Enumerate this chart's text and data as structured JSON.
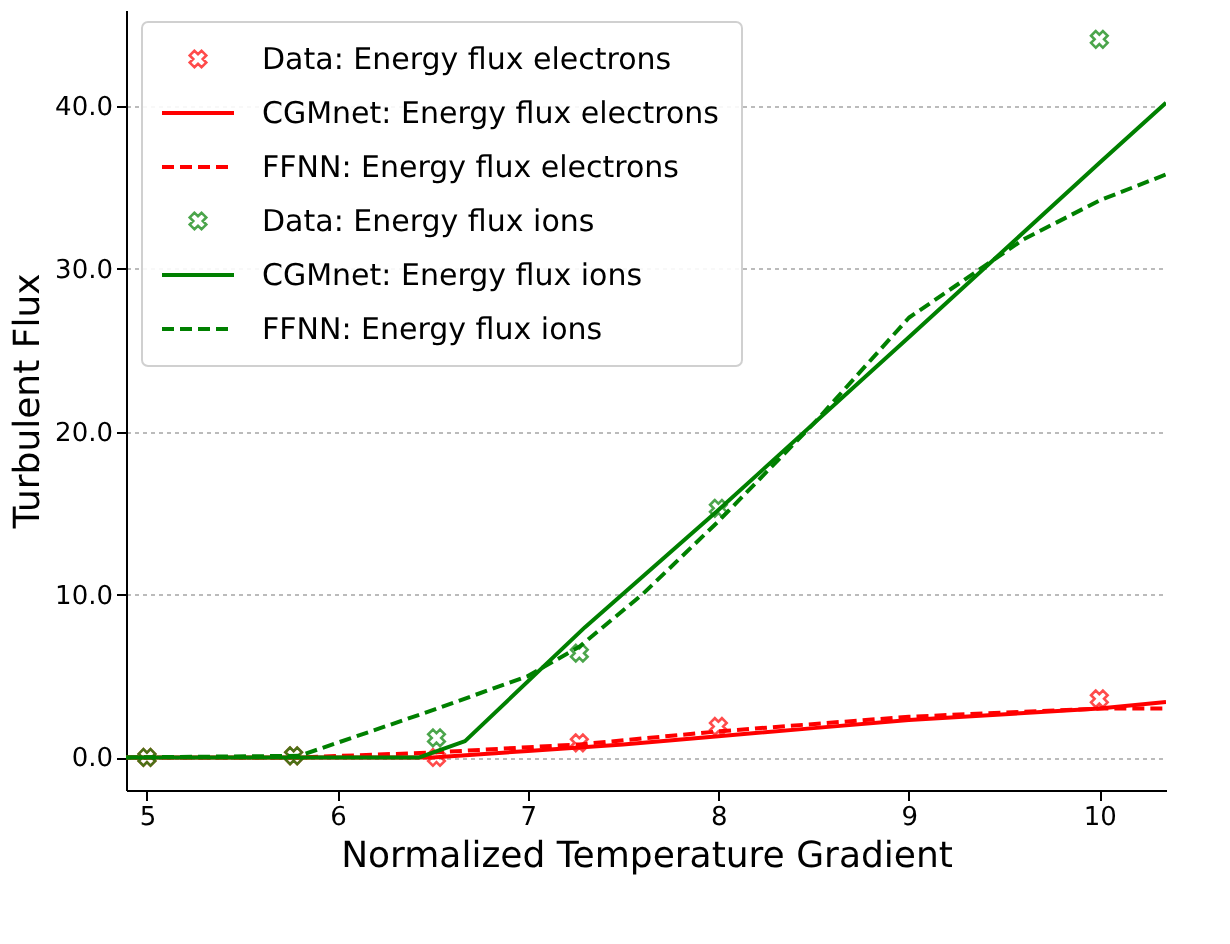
{
  "chart_data": {
    "type": "line",
    "xlabel": "Normalized Temperature Gradient",
    "ylabel": "Turbulent Flux",
    "xlim": [
      4.89,
      10.35
    ],
    "ylim": [
      -2.0,
      45.9
    ],
    "xticks": [
      5,
      6,
      7,
      8,
      9,
      10
    ],
    "yticks": [
      {
        "value": 0,
        "label": "0.0"
      },
      {
        "value": 10,
        "label": "10.0"
      },
      {
        "value": 20,
        "label": "20.0"
      },
      {
        "value": 30,
        "label": "30.0"
      },
      {
        "value": 40,
        "label": "40.0"
      }
    ],
    "grid": "y",
    "legend": "top left",
    "series": [
      {
        "name": "Data: Energy flux electrons",
        "type": "scatter",
        "marker": "cross",
        "color": "#ff0000",
        "x": [
          5,
          5.77,
          6.52,
          7.27,
          8,
          10
        ],
        "values": [
          0.0,
          0.1,
          0.0,
          0.9,
          1.9,
          3.6
        ]
      },
      {
        "name": "CGMnet: Energy flux electrons",
        "type": "line",
        "line_style": "solid",
        "color": "#ff0000",
        "x": [
          4.89,
          6.5,
          7,
          7.5,
          8,
          8.5,
          9,
          10,
          10.35
        ],
        "values": [
          0,
          0,
          0.4,
          0.8,
          1.3,
          1.8,
          2.3,
          3.0,
          3.4
        ]
      },
      {
        "name": "FFNN: Energy flux electrons",
        "type": "line",
        "line_style": "dashed",
        "color": "#ff0000",
        "x": [
          4.89,
          5.8,
          6.5,
          7.27,
          8,
          9,
          10,
          10.35
        ],
        "values": [
          0,
          0.0,
          0.3,
          0.8,
          1.6,
          2.5,
          3.0,
          3.0
        ]
      },
      {
        "name": "Data: Energy flux ions",
        "type": "scatter",
        "marker": "cross",
        "color": "#008000",
        "x": [
          5,
          5.77,
          6.52,
          7.27,
          8,
          10
        ],
        "values": [
          0.0,
          0.1,
          1.2,
          6.4,
          15.3,
          44.1
        ]
      },
      {
        "name": "CGMnet: Energy flux ions",
        "type": "line",
        "line_style": "solid",
        "color": "#008000",
        "x": [
          4.89,
          6.43,
          6.67,
          7.3,
          8,
          9,
          10,
          10.35
        ],
        "values": [
          0,
          0,
          1.0,
          8.0,
          15.2,
          25.8,
          36.5,
          40.2
        ]
      },
      {
        "name": "FFNN: Energy flux ions",
        "type": "line",
        "line_style": "dashed",
        "color": "#008000",
        "x": [
          4.89,
          5.8,
          6.5,
          7,
          7.27,
          7.6,
          8,
          8.5,
          9,
          9.6,
          10,
          10.35
        ],
        "values": [
          0,
          0.1,
          2.9,
          5.0,
          6.8,
          10.0,
          14.5,
          20.5,
          27.0,
          31.8,
          34.2,
          35.8
        ]
      }
    ]
  }
}
